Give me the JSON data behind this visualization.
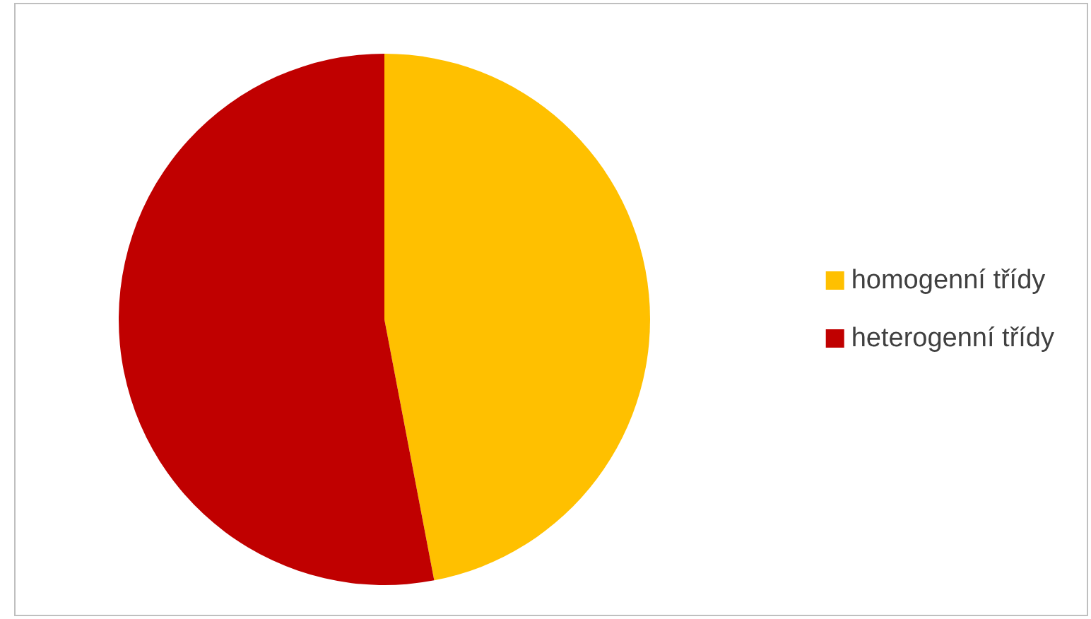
{
  "chart_data": {
    "type": "pie",
    "categories": [
      "homogenní třídy",
      "heterogenní třídy"
    ],
    "values": [
      47,
      53
    ],
    "colors": [
      "#ffc000",
      "#c00000"
    ],
    "legend": "right"
  }
}
